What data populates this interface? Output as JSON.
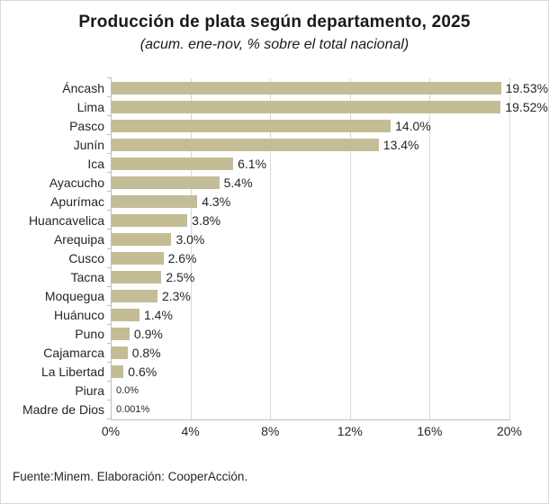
{
  "header": {
    "title": "Producción de plata según departamento, 2025",
    "subtitle": "(acum. ene-nov, % sobre el total nacional)"
  },
  "footer": {
    "source": "Fuente:Minem. Elaboración: CooperAcción."
  },
  "chart_data": {
    "type": "bar",
    "orientation": "horizontal",
    "title": "Producción de plata según departamento, 2025",
    "subtitle": "(acum. ene-nov, % sobre el total nacional)",
    "categories": [
      "Áncash",
      "Lima",
      "Pasco",
      "Junín",
      "Ica",
      "Ayacucho",
      "Apurímac",
      "Huancavelica",
      "Arequipa",
      "Cusco",
      "Tacna",
      "Moquegua",
      "Huánuco",
      "Puno",
      "Cajamarca",
      "La Libertad",
      "Piura",
      "Madre de Dios"
    ],
    "values": [
      19.53,
      19.52,
      14.0,
      13.4,
      6.1,
      5.4,
      4.3,
      3.8,
      3.0,
      2.6,
      2.5,
      2.3,
      1.4,
      0.9,
      0.8,
      0.6,
      0.0,
      0.001
    ],
    "data_labels": [
      "19.53%",
      "19.52%",
      "14.0%",
      "13.4%",
      "6.1%",
      "5.4%",
      "4.3%",
      "3.8%",
      "3.0%",
      "2.6%",
      "2.5%",
      "2.3%",
      "1.4%",
      "0.9%",
      "0.8%",
      "0.6%",
      "0.0%",
      "0.001%"
    ],
    "x_tick_values": [
      0,
      4,
      8,
      12,
      16,
      20
    ],
    "x_tick_labels": [
      "0%",
      "4%",
      "8%",
      "12%",
      "16%",
      "20%"
    ],
    "xlim": [
      0,
      20
    ],
    "grid": true,
    "legend": "none",
    "bar_color": "#c4bc94",
    "gridline_color": "#d9d9d9",
    "axis_color": "#bfbfbf",
    "footer": "Fuente:Minem. Elaboración: CooperAcción."
  }
}
